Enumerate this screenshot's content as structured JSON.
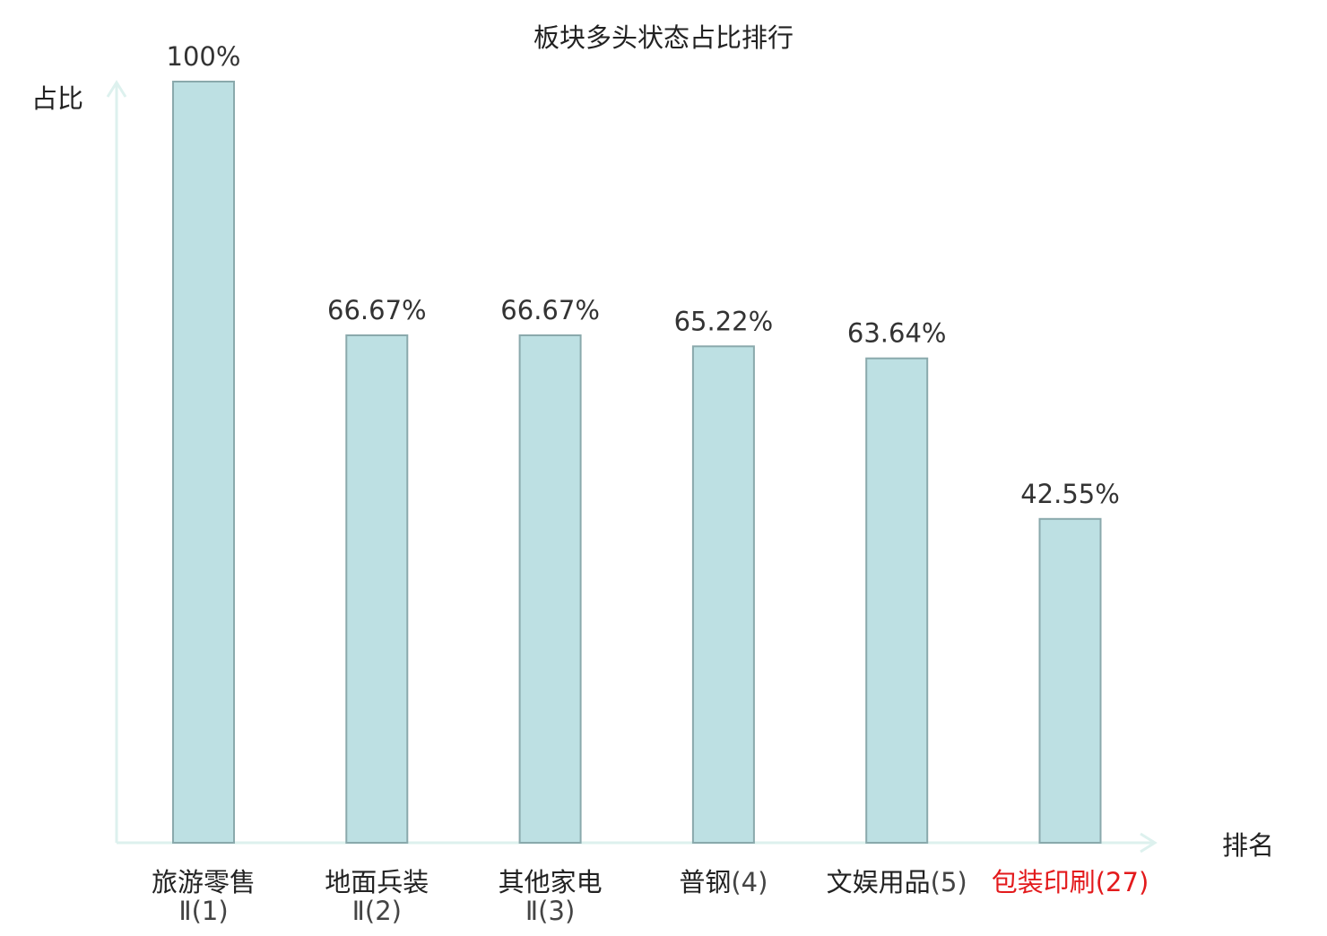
{
  "chart_data": {
    "type": "bar",
    "title": "板块多头状态占比排行",
    "xlabel": "排名",
    "ylabel": "占比",
    "categories": [
      {
        "name_lines": [
          "旅游零售",
          "Ⅱ"
        ],
        "rank": "(1)",
        "highlight": false
      },
      {
        "name_lines": [
          "地面兵装",
          "Ⅱ"
        ],
        "rank": "(2)",
        "highlight": false
      },
      {
        "name_lines": [
          "其他家电",
          "Ⅱ"
        ],
        "rank": "(3)",
        "highlight": false
      },
      {
        "name_lines": [
          "普钢"
        ],
        "rank": "(4)",
        "highlight": false
      },
      {
        "name_lines": [
          "文娱用品"
        ],
        "rank": "(5)",
        "highlight": false
      },
      {
        "name_lines": [
          "包装印刷"
        ],
        "rank": "(27)",
        "highlight": true
      }
    ],
    "values": [
      100,
      66.67,
      66.67,
      65.22,
      63.64,
      42.55
    ],
    "value_labels": [
      "100%",
      "66.67%",
      "66.67%",
      "65.22%",
      "63.64%",
      "42.55%"
    ],
    "ylim": [
      0,
      100
    ],
    "grid": false,
    "legend": "none",
    "colors": {
      "bar_fill": "#bde0e3",
      "bar_stroke": "#8aa9ac",
      "axis": "#ddf1ee",
      "text": "#222222",
      "value_label": "#333333",
      "rank_text": "#444444",
      "highlight": "#e31a1c"
    }
  }
}
